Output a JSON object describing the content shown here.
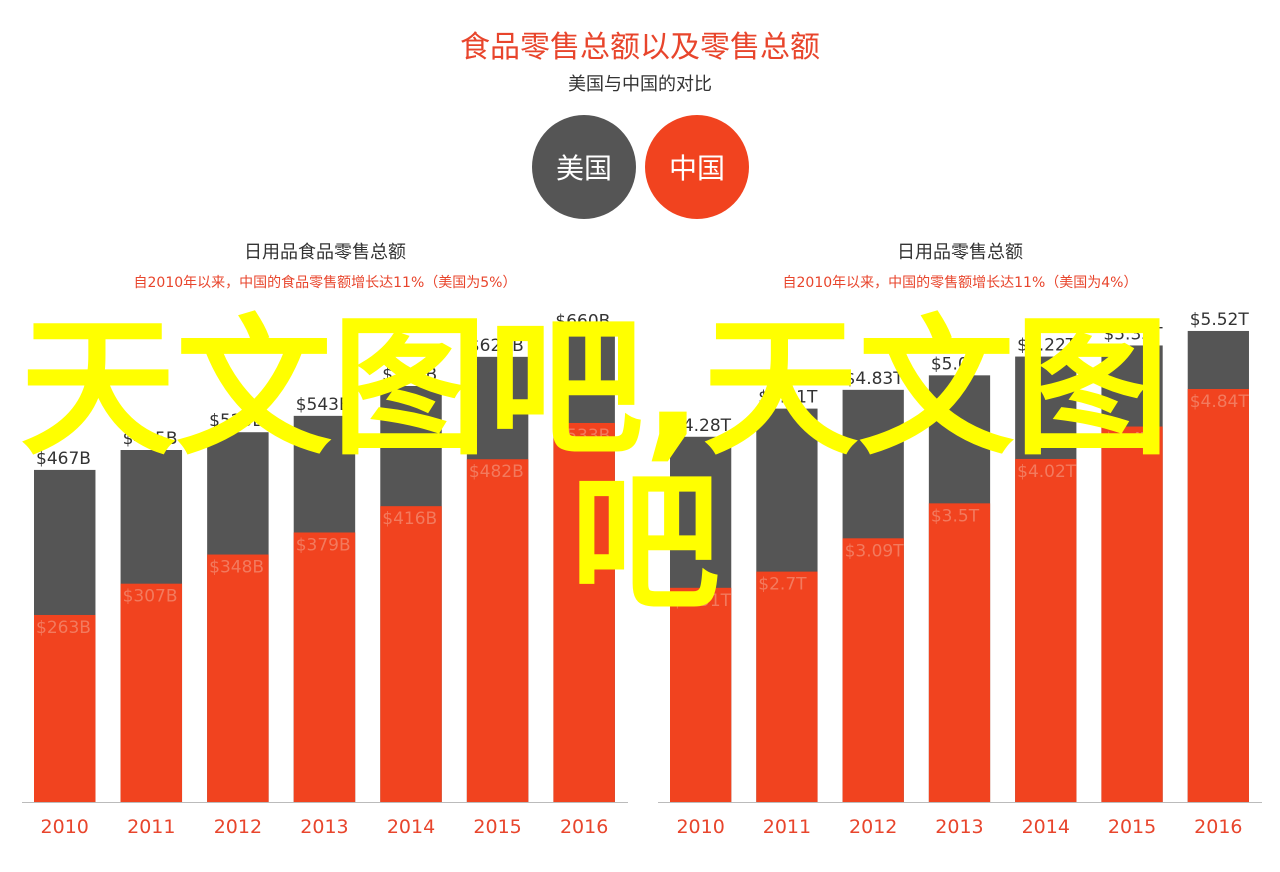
{
  "title": "食品零售总额以及零售总额",
  "subtitle": "美国与中国的对比",
  "colors": {
    "us": "#555555",
    "china": "#f1431f",
    "title": "#e8452c",
    "axis_text": "#e8452c",
    "note": "#e8452c",
    "watermark": "#ffff00"
  },
  "legend": {
    "us": "美国",
    "china": "中国"
  },
  "watermark": {
    "line1": "天文图吧,天文图",
    "line2": "吧"
  },
  "chart_data": [
    {
      "type": "bar",
      "title": "日用品食品零售总额",
      "note": "自2010年以来，中国的食品零售额增长达11%（美国为5%）",
      "categories": [
        "2010",
        "2011",
        "2012",
        "2013",
        "2014",
        "2015",
        "2016"
      ],
      "ylim": [
        0,
        720
      ],
      "series": [
        {
          "name": "美国",
          "values": [
            467,
            495,
            520,
            543,
            585,
            626,
            660
          ],
          "labels": [
            "$467B",
            "$495B",
            "$520B",
            "$543B",
            "$585B",
            "$626B",
            "$660B"
          ]
        },
        {
          "name": "中国",
          "values": [
            263,
            307,
            348,
            379,
            416,
            482,
            533
          ],
          "labels": [
            "$263B",
            "$307B",
            "$348B",
            "$379B",
            "$416B",
            "$482B",
            "$533B"
          ]
        }
      ]
    },
    {
      "type": "bar",
      "title": "日用品零售总额",
      "note": "自2010年以来，中国的零售额增长达11%（美国为4%）",
      "categories": [
        "2010",
        "2011",
        "2012",
        "2013",
        "2014",
        "2015",
        "2016"
      ],
      "ylim": [
        0,
        6.0
      ],
      "series": [
        {
          "name": "美国",
          "values": [
            4.28,
            4.61,
            4.83,
            5.0,
            5.22,
            5.35,
            5.52
          ],
          "labels": [
            "$4.28T",
            "$4.61T",
            "$4.83T",
            "$5.0T",
            "$5.22T",
            "$5.35T",
            "$5.52T"
          ]
        },
        {
          "name": "中国",
          "values": [
            2.51,
            2.7,
            3.09,
            3.5,
            4.02,
            4.4,
            4.84
          ],
          "labels": [
            "$2.51T",
            "$2.7T",
            "$3.09T",
            "$3.5T",
            "$4.02T",
            "$4.4T",
            "$4.84T"
          ]
        }
      ]
    }
  ]
}
